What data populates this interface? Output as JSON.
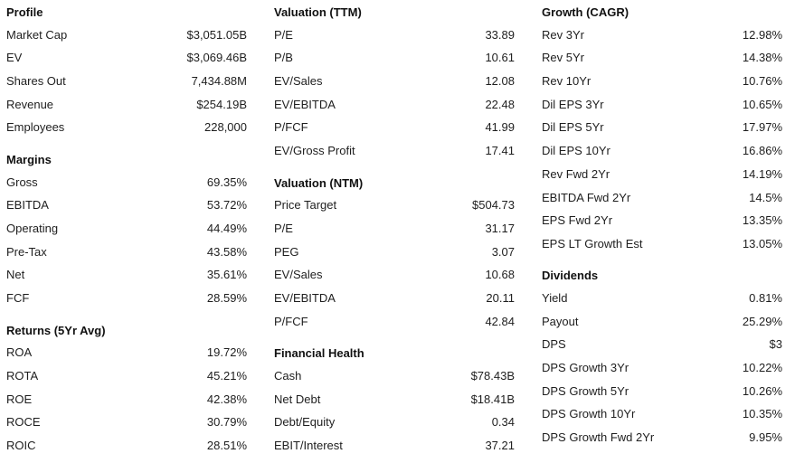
{
  "columns": [
    {
      "sections": [
        {
          "title": "Profile",
          "rows": [
            {
              "label": "Market Cap",
              "value": "$3,051.05B"
            },
            {
              "label": "EV",
              "value": "$3,069.46B"
            },
            {
              "label": "Shares Out",
              "value": "7,434.88M"
            },
            {
              "label": "Revenue",
              "value": "$254.19B"
            },
            {
              "label": "Employees",
              "value": "228,000"
            }
          ]
        },
        {
          "title": "Margins",
          "rows": [
            {
              "label": "Gross",
              "value": "69.35%"
            },
            {
              "label": "EBITDA",
              "value": "53.72%"
            },
            {
              "label": "Operating",
              "value": "44.49%"
            },
            {
              "label": "Pre-Tax",
              "value": "43.58%"
            },
            {
              "label": "Net",
              "value": "35.61%"
            },
            {
              "label": "FCF",
              "value": "28.59%"
            }
          ]
        },
        {
          "title": "Returns (5Yr Avg)",
          "rows": [
            {
              "label": "ROA",
              "value": "19.72%"
            },
            {
              "label": "ROTA",
              "value": "45.21%"
            },
            {
              "label": "ROE",
              "value": "42.38%"
            },
            {
              "label": "ROCE",
              "value": "30.79%"
            },
            {
              "label": "ROIC",
              "value": "28.51%"
            }
          ]
        }
      ]
    },
    {
      "sections": [
        {
          "title": "Valuation (TTM)",
          "rows": [
            {
              "label": "P/E",
              "value": "33.89"
            },
            {
              "label": "P/B",
              "value": "10.61"
            },
            {
              "label": "EV/Sales",
              "value": "12.08"
            },
            {
              "label": "EV/EBITDA",
              "value": "22.48"
            },
            {
              "label": "P/FCF",
              "value": "41.99"
            },
            {
              "label": "EV/Gross Profit",
              "value": "17.41"
            }
          ]
        },
        {
          "title": "Valuation (NTM)",
          "rows": [
            {
              "label": "Price Target",
              "value": "$504.73"
            },
            {
              "label": "P/E",
              "value": "31.17"
            },
            {
              "label": "PEG",
              "value": "3.07"
            },
            {
              "label": "EV/Sales",
              "value": "10.68"
            },
            {
              "label": "EV/EBITDA",
              "value": "20.11"
            },
            {
              "label": "P/FCF",
              "value": "42.84"
            }
          ]
        },
        {
          "title": "Financial Health",
          "rows": [
            {
              "label": "Cash",
              "value": "$78.43B"
            },
            {
              "label": "Net Debt",
              "value": "$18.41B"
            },
            {
              "label": "Debt/Equity",
              "value": "0.34"
            },
            {
              "label": "EBIT/Interest",
              "value": "37.21"
            }
          ]
        }
      ]
    },
    {
      "sections": [
        {
          "title": "Growth (CAGR)",
          "rows": [
            {
              "label": "Rev 3Yr",
              "value": "12.98%"
            },
            {
              "label": "Rev 5Yr",
              "value": "14.38%"
            },
            {
              "label": "Rev 10Yr",
              "value": "10.76%"
            },
            {
              "label": "Dil EPS 3Yr",
              "value": "10.65%"
            },
            {
              "label": "Dil EPS 5Yr",
              "value": "17.97%"
            },
            {
              "label": "Dil EPS 10Yr",
              "value": "16.86%"
            },
            {
              "label": "Rev Fwd 2Yr",
              "value": "14.19%"
            },
            {
              "label": "EBITDA Fwd 2Yr",
              "value": "14.5%"
            },
            {
              "label": "EPS Fwd 2Yr",
              "value": "13.35%"
            },
            {
              "label": "EPS LT Growth Est",
              "value": "13.05%"
            }
          ]
        },
        {
          "title": "Dividends",
          "rows": [
            {
              "label": "Yield",
              "value": "0.81%"
            },
            {
              "label": "Payout",
              "value": "25.29%"
            },
            {
              "label": "DPS",
              "value": "$3"
            },
            {
              "label": "DPS Growth 3Yr",
              "value": "10.22%"
            },
            {
              "label": "DPS Growth 5Yr",
              "value": "10.26%"
            },
            {
              "label": "DPS Growth 10Yr",
              "value": "10.35%"
            },
            {
              "label": "DPS Growth Fwd 2Yr",
              "value": "9.95%"
            }
          ]
        }
      ]
    }
  ]
}
